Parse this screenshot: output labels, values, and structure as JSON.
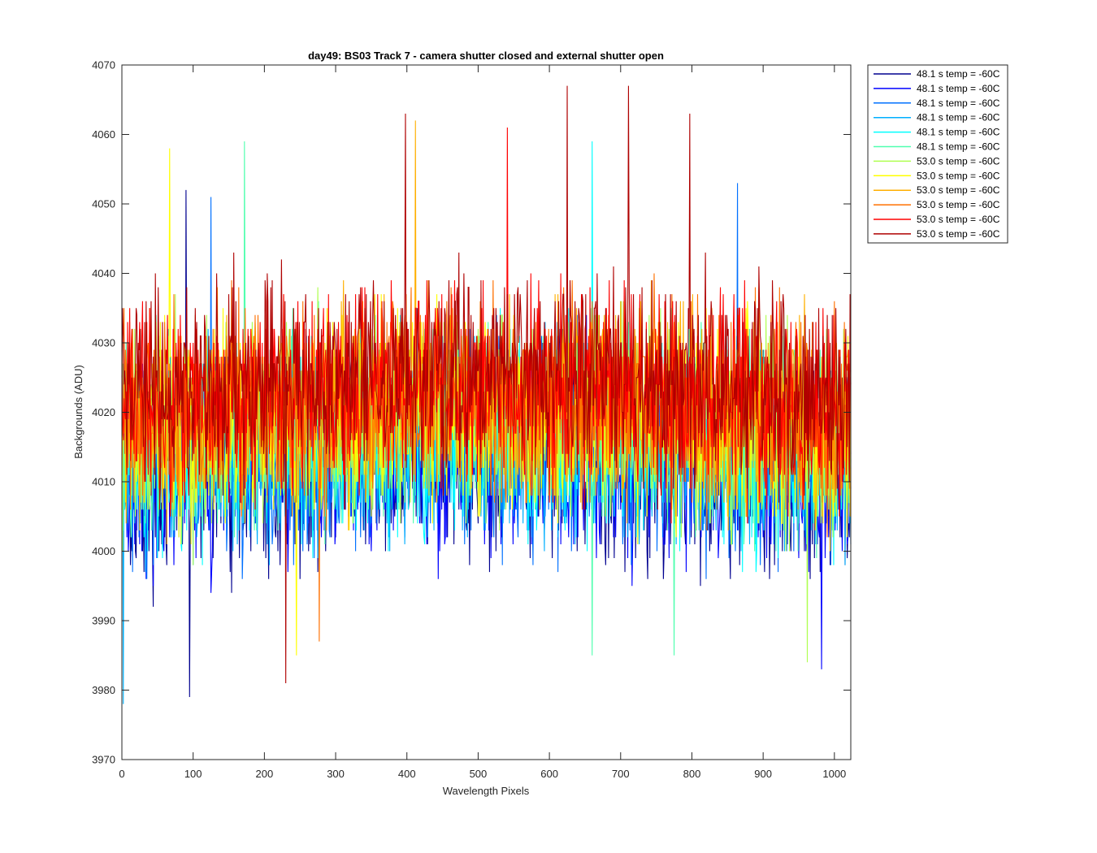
{
  "chart_data": {
    "type": "line",
    "title": "day49: BS03  Track 7 - camera shutter closed and external shutter open",
    "xlabel": "Wavelength Pixels",
    "ylabel": "Backgrounds (ADU)",
    "xlim": [
      0,
      1023
    ],
    "ylim": [
      3970,
      4070
    ],
    "xticks": [
      0,
      100,
      200,
      300,
      400,
      500,
      600,
      700,
      800,
      900,
      1000
    ],
    "yticks": [
      3970,
      3980,
      3990,
      4000,
      4010,
      4020,
      4030,
      4040,
      4050,
      4060,
      4070
    ],
    "grid": false,
    "legend_position": "outside-top-right",
    "series": [
      {
        "name": "48.1 s temp = -60C",
        "color": "#00008f",
        "mean": 4012,
        "noise": 7,
        "peaks": [
          [
            95,
            3979
          ],
          [
            90,
            4052
          ]
        ]
      },
      {
        "name": "48.1 s temp = -60C",
        "color": "#0000ff",
        "mean": 4013,
        "noise": 7,
        "peaks": [
          [
            982,
            3983
          ]
        ]
      },
      {
        "name": "48.1 s temp = -60C",
        "color": "#0070ff",
        "mean": 4014,
        "noise": 7,
        "peaks": [
          [
            125,
            4051
          ],
          [
            864,
            4053
          ]
        ]
      },
      {
        "name": "48.1 s temp = -60C",
        "color": "#00afff",
        "mean": 4015,
        "noise": 7,
        "peaks": [
          [
            2,
            3978
          ]
        ]
      },
      {
        "name": "48.1 s temp = -60C",
        "color": "#00ffff",
        "mean": 4016,
        "noise": 7,
        "peaks": [
          [
            660,
            4059
          ]
        ]
      },
      {
        "name": "48.1 s temp = -60C",
        "color": "#50ffaf",
        "mean": 4017,
        "noise": 7,
        "peaks": [
          [
            172,
            4059
          ],
          [
            660,
            3985
          ],
          [
            775,
            3985
          ]
        ]
      },
      {
        "name": "53.0 s temp = -60C",
        "color": "#afff50",
        "mean": 4018,
        "noise": 7,
        "peaks": [
          [
            962,
            3984
          ]
        ]
      },
      {
        "name": "53.0 s temp = -60C",
        "color": "#ffff00",
        "mean": 4019,
        "noise": 7,
        "peaks": [
          [
            67,
            4058
          ],
          [
            245,
            3985
          ]
        ]
      },
      {
        "name": "53.0 s temp = -60C",
        "color": "#ffaf00",
        "mean": 4020,
        "noise": 7,
        "peaks": [
          [
            412,
            4062
          ]
        ]
      },
      {
        "name": "53.0 s temp = -60C",
        "color": "#ff7000",
        "mean": 4021,
        "noise": 7,
        "peaks": [
          [
            277,
            3987
          ]
        ]
      },
      {
        "name": "53.0 s temp = -60C",
        "color": "#ff0000",
        "mean": 4022,
        "noise": 7,
        "peaks": [
          [
            541,
            4061
          ]
        ]
      },
      {
        "name": "53.0 s temp = -60C",
        "color": "#af0000",
        "mean": 4024,
        "noise": 7,
        "peaks": [
          [
            398,
            4063
          ],
          [
            625,
            4067
          ],
          [
            711,
            4067
          ],
          [
            797,
            4063
          ],
          [
            230,
            3981
          ]
        ]
      }
    ]
  }
}
